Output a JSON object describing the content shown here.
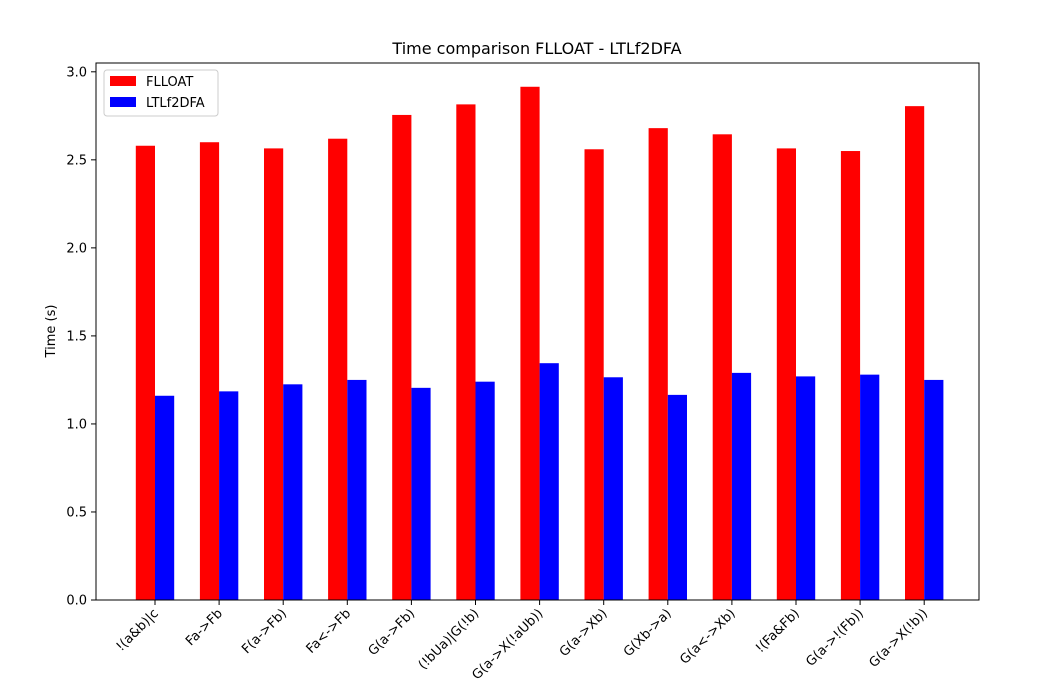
{
  "chart_data": {
    "type": "bar",
    "title": "Time comparison FLLOAT - LTLf2DFA",
    "xlabel": "",
    "ylabel": "Time (s)",
    "ylim": [
      0,
      3.05
    ],
    "yticks": [
      0.0,
      0.5,
      1.0,
      1.5,
      2.0,
      2.5,
      3.0
    ],
    "ytick_labels": [
      "0.0",
      "0.5",
      "1.0",
      "1.5",
      "2.0",
      "2.5",
      "3.0"
    ],
    "grid": false,
    "legend_position": "top-left",
    "categories": [
      "!(a&b)|c",
      "Fa->Fb",
      "F(a->Fb)",
      "Fa<->Fb",
      "G(a->Fb)",
      "(!bUa)|G(!b)",
      "G(a->X(!aUb))",
      "G(a->Xb)",
      "G(Xb->a)",
      "G(a<->Xb)",
      "!(Fa&Fb)",
      "G(a->!(Fb))",
      "G(a->X(!b))"
    ],
    "series": [
      {
        "name": "FLLOAT",
        "color": "#ff0000",
        "values": [
          2.58,
          2.6,
          2.565,
          2.62,
          2.755,
          2.815,
          2.915,
          2.56,
          2.68,
          2.645,
          2.565,
          2.55,
          2.805
        ]
      },
      {
        "name": "LTLf2DFA",
        "color": "#0000ff",
        "values": [
          1.16,
          1.185,
          1.225,
          1.25,
          1.205,
          1.24,
          1.345,
          1.265,
          1.165,
          1.29,
          1.27,
          1.28,
          1.25
        ]
      }
    ]
  }
}
